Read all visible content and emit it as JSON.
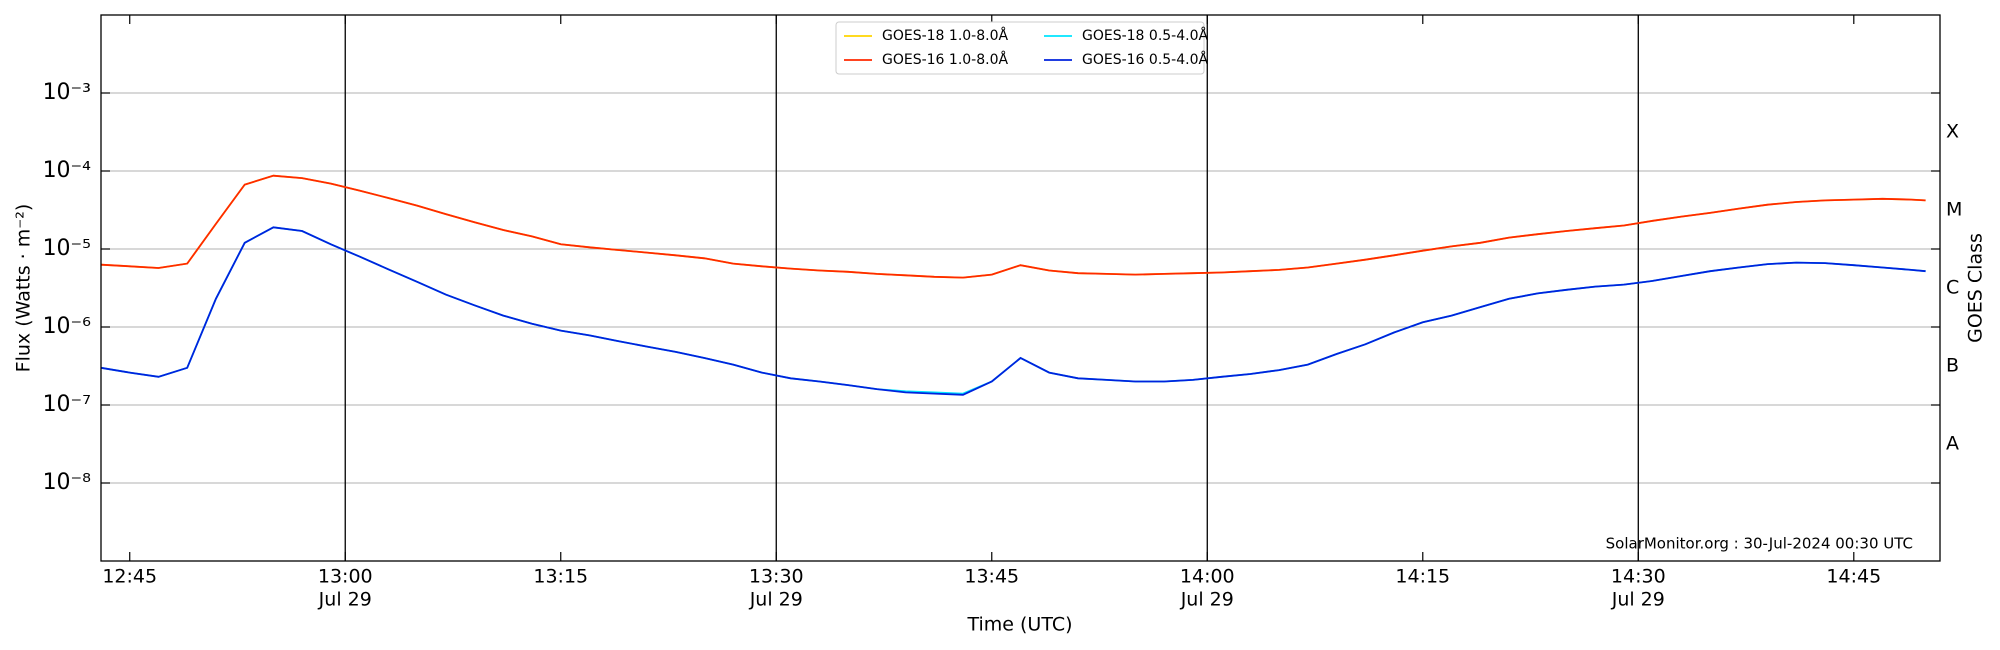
{
  "chart_data": {
    "type": "line",
    "x_label": "Time (UTC)",
    "y_label": "Flux (Watts · m⁻²)",
    "y2_label": "GOES Class",
    "annotation": "SolarMonitor.org : 30-Jul-2024 00:30 UTC",
    "log_y": true,
    "grid": true,
    "legend": "upper center",
    "xlim": [
      "12:43",
      "14:51"
    ],
    "xticks": [
      {
        "value": "12:45",
        "label": "12:45"
      },
      {
        "value": "13:00",
        "label": "13:00",
        "date": "Jul 29"
      },
      {
        "value": "13:15",
        "label": "13:15"
      },
      {
        "value": "13:30",
        "label": "13:30",
        "date": "Jul 29"
      },
      {
        "value": "13:45",
        "label": "13:45"
      },
      {
        "value": "14:00",
        "label": "14:00",
        "date": "Jul 29"
      },
      {
        "value": "14:15",
        "label": "14:15"
      },
      {
        "value": "14:30",
        "label": "14:30",
        "date": "Jul 29"
      },
      {
        "value": "14:45",
        "label": "14:45"
      }
    ],
    "vlines": [
      "13:00",
      "13:30",
      "14:00",
      "14:30"
    ],
    "ylim": [
      1e-09,
      0.01
    ],
    "yticks": [
      {
        "value": 1e-08,
        "label": "10⁻⁸"
      },
      {
        "value": 1e-07,
        "label": "10⁻⁷"
      },
      {
        "value": 1e-06,
        "label": "10⁻⁶"
      },
      {
        "value": 1e-05,
        "label": "10⁻⁵"
      },
      {
        "value": 0.0001,
        "label": "10⁻⁴"
      },
      {
        "value": 0.001,
        "label": "10⁻³"
      }
    ],
    "y2ticks": [
      {
        "value": 3.16e-08,
        "label": "A"
      },
      {
        "value": 3.16e-07,
        "label": "B"
      },
      {
        "value": 3.16e-06,
        "label": "C"
      },
      {
        "value": 3.16e-05,
        "label": "M"
      },
      {
        "value": 0.000316,
        "label": "X"
      }
    ],
    "x": [
      "12:43",
      "12:45",
      "12:47",
      "12:49",
      "12:51",
      "12:53",
      "12:55",
      "12:57",
      "12:59",
      "13:01",
      "13:03",
      "13:05",
      "13:07",
      "13:09",
      "13:11",
      "13:13",
      "13:15",
      "13:17",
      "13:19",
      "13:21",
      "13:23",
      "13:25",
      "13:27",
      "13:29",
      "13:31",
      "13:33",
      "13:35",
      "13:37",
      "13:39",
      "13:41",
      "13:43",
      "13:45",
      "13:47",
      "13:49",
      "13:51",
      "13:53",
      "13:55",
      "13:57",
      "13:59",
      "14:01",
      "14:03",
      "14:05",
      "14:07",
      "14:09",
      "14:11",
      "14:13",
      "14:15",
      "14:17",
      "14:19",
      "14:21",
      "14:23",
      "14:25",
      "14:27",
      "14:29",
      "14:31",
      "14:33",
      "14:35",
      "14:37",
      "14:39",
      "14:41",
      "14:43",
      "14:45",
      "14:47",
      "14:49",
      "14:50"
    ],
    "series": [
      {
        "name": "GOES-18 1.0-8.0Å",
        "color": "#ffd400",
        "values": [
          6.3e-06,
          6e-06,
          5.7e-06,
          6.5e-06,
          2.1e-05,
          6.7e-05,
          8.7e-05,
          8.1e-05,
          6.9e-05,
          5.6e-05,
          4.5e-05,
          3.6e-05,
          2.8e-05,
          2.2e-05,
          1.75e-05,
          1.45e-05,
          1.15e-05,
          1.05e-05,
          9.7e-06,
          9e-06,
          8.3e-06,
          7.6e-06,
          6.5e-06,
          6e-06,
          5.6e-06,
          5.3e-06,
          5.1e-06,
          4.8e-06,
          4.6e-06,
          4.4e-06,
          4.3e-06,
          4.7e-06,
          6.2e-06,
          5.3e-06,
          4.9e-06,
          4.8e-06,
          4.7e-06,
          4.8e-06,
          4.9e-06,
          5e-06,
          5.2e-06,
          5.4e-06,
          5.8e-06,
          6.5e-06,
          7.3e-06,
          8.3e-06,
          9.5e-06,
          1.08e-05,
          1.2e-05,
          1.4e-05,
          1.55e-05,
          1.7e-05,
          1.85e-05,
          2e-05,
          2.3e-05,
          2.6e-05,
          2.9e-05,
          3.3e-05,
          3.7e-05,
          4e-05,
          4.2e-05,
          4.3e-05,
          4.4e-05,
          4.3e-05,
          4.2e-05
        ]
      },
      {
        "name": "GOES-16 1.0-8.0Å",
        "color": "#ff2a00",
        "values": [
          6.3e-06,
          6e-06,
          5.7e-06,
          6.5e-06,
          2.1e-05,
          6.7e-05,
          8.7e-05,
          8.1e-05,
          6.9e-05,
          5.6e-05,
          4.5e-05,
          3.6e-05,
          2.8e-05,
          2.2e-05,
          1.75e-05,
          1.45e-05,
          1.15e-05,
          1.05e-05,
          9.7e-06,
          9e-06,
          8.3e-06,
          7.6e-06,
          6.5e-06,
          6e-06,
          5.6e-06,
          5.3e-06,
          5.1e-06,
          4.8e-06,
          4.6e-06,
          4.4e-06,
          4.3e-06,
          4.7e-06,
          6.2e-06,
          5.3e-06,
          4.9e-06,
          4.8e-06,
          4.7e-06,
          4.8e-06,
          4.9e-06,
          5e-06,
          5.2e-06,
          5.4e-06,
          5.8e-06,
          6.5e-06,
          7.3e-06,
          8.3e-06,
          9.5e-06,
          1.08e-05,
          1.2e-05,
          1.4e-05,
          1.55e-05,
          1.7e-05,
          1.85e-05,
          2e-05,
          2.3e-05,
          2.6e-05,
          2.9e-05,
          3.3e-05,
          3.7e-05,
          4e-05,
          4.2e-05,
          4.3e-05,
          4.4e-05,
          4.3e-05,
          4.2e-05
        ]
      },
      {
        "name": "GOES-18 0.5-4.0Å",
        "color": "#00e5ff",
        "values": [
          3e-07,
          2.6e-07,
          2.3e-07,
          3e-07,
          2.3e-06,
          1.2e-05,
          1.9e-05,
          1.7e-05,
          1.15e-05,
          8e-06,
          5.5e-06,
          3.8e-06,
          2.6e-06,
          1.9e-06,
          1.4e-06,
          1.1e-06,
          9e-07,
          7.8e-07,
          6.6e-07,
          5.6e-07,
          4.8e-07,
          4e-07,
          3.3e-07,
          2.6e-07,
          2.2e-07,
          2e-07,
          1.8e-07,
          1.6e-07,
          1.5e-07,
          1.45e-07,
          1.4e-07,
          2e-07,
          4e-07,
          2.6e-07,
          2.2e-07,
          2.1e-07,
          2e-07,
          2e-07,
          2.1e-07,
          2.3e-07,
          2.5e-07,
          2.8e-07,
          3.3e-07,
          4.5e-07,
          6e-07,
          8.5e-07,
          1.15e-06,
          1.4e-06,
          1.8e-06,
          2.3e-06,
          2.7e-06,
          3e-06,
          3.3e-06,
          3.5e-06,
          3.9e-06,
          4.5e-06,
          5.2e-06,
          5.8e-06,
          6.4e-06,
          6.7e-06,
          6.6e-06,
          6.2e-06,
          5.8e-06,
          5.4e-06,
          5.2e-06
        ]
      },
      {
        "name": "GOES-16 0.5-4.0Å",
        "color": "#0022dd",
        "values": [
          3e-07,
          2.6e-07,
          2.3e-07,
          3e-07,
          2.3e-06,
          1.2e-05,
          1.9e-05,
          1.7e-05,
          1.15e-05,
          8e-06,
          5.5e-06,
          3.8e-06,
          2.6e-06,
          1.9e-06,
          1.4e-06,
          1.1e-06,
          9e-07,
          7.8e-07,
          6.6e-07,
          5.6e-07,
          4.8e-07,
          4e-07,
          3.3e-07,
          2.6e-07,
          2.2e-07,
          2e-07,
          1.8e-07,
          1.6e-07,
          1.45e-07,
          1.4e-07,
          1.35e-07,
          2e-07,
          4e-07,
          2.6e-07,
          2.2e-07,
          2.1e-07,
          2e-07,
          2e-07,
          2.1e-07,
          2.3e-07,
          2.5e-07,
          2.8e-07,
          3.3e-07,
          4.5e-07,
          6e-07,
          8.5e-07,
          1.15e-06,
          1.4e-06,
          1.8e-06,
          2.3e-06,
          2.7e-06,
          3e-06,
          3.3e-06,
          3.5e-06,
          3.9e-06,
          4.5e-06,
          5.2e-06,
          5.8e-06,
          6.4e-06,
          6.7e-06,
          6.6e-06,
          6.2e-06,
          5.8e-06,
          5.4e-06,
          5.2e-06
        ]
      }
    ]
  }
}
